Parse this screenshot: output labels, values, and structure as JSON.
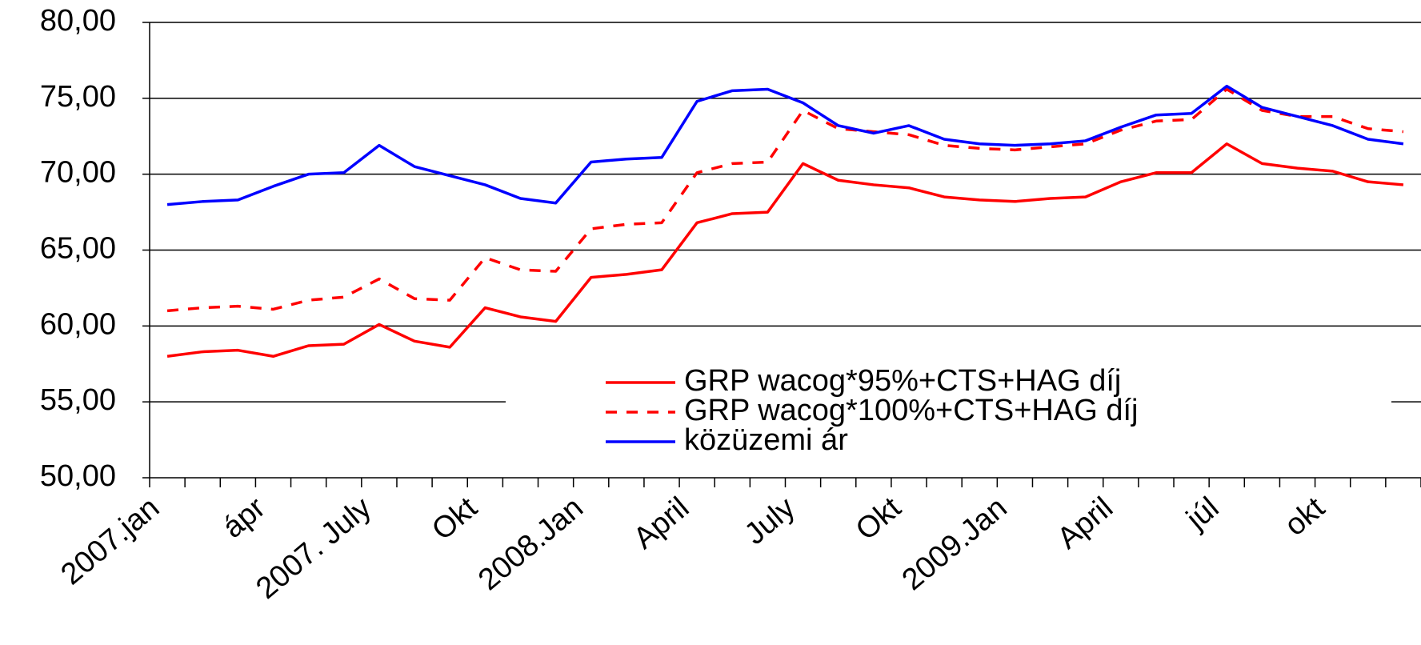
{
  "chart_data": {
    "type": "line",
    "categories": [
      "2007.jan",
      null,
      null,
      "ápr",
      null,
      null,
      "2007. July",
      null,
      null,
      "Okt",
      null,
      null,
      "2008.Jan",
      null,
      null,
      "April",
      null,
      null,
      "July",
      null,
      null,
      "Okt",
      null,
      null,
      "2009.Jan",
      null,
      null,
      "April",
      null,
      null,
      "júl",
      null,
      null,
      "okt",
      null,
      null
    ],
    "series": [
      {
        "name": "GRP wacog*95%+CTS+HAG díj",
        "color": "#ff0000",
        "style": "solid",
        "values": [
          58.0,
          58.3,
          58.4,
          58.0,
          58.7,
          58.8,
          60.1,
          59.0,
          58.6,
          61.2,
          60.6,
          60.3,
          63.2,
          63.4,
          63.7,
          66.8,
          67.4,
          67.5,
          70.7,
          69.6,
          69.3,
          69.1,
          68.5,
          68.3,
          68.2,
          68.4,
          68.5,
          69.5,
          70.1,
          70.1,
          72.0,
          70.7,
          70.4,
          70.2,
          69.5,
          69.3
        ]
      },
      {
        "name": "GRP wacog*100%+CTS+HAG díj",
        "color": "#ff0000",
        "style": "dashed",
        "values": [
          61.0,
          61.2,
          61.3,
          61.1,
          61.7,
          61.9,
          63.1,
          61.8,
          61.7,
          64.5,
          63.7,
          63.6,
          66.4,
          66.7,
          66.8,
          70.1,
          70.7,
          70.8,
          74.2,
          73.0,
          72.8,
          72.6,
          71.9,
          71.7,
          71.6,
          71.8,
          72.0,
          72.9,
          73.5,
          73.6,
          75.6,
          74.2,
          73.8,
          73.8,
          73.0,
          72.8
        ]
      },
      {
        "name": "közüzemi ár",
        "color": "#0000ff",
        "style": "solid",
        "values": [
          68.0,
          68.2,
          68.3,
          69.2,
          70.0,
          70.1,
          71.9,
          70.5,
          69.9,
          69.3,
          68.4,
          68.1,
          70.8,
          71.0,
          71.1,
          74.8,
          75.5,
          75.6,
          74.7,
          73.2,
          72.7,
          73.2,
          72.3,
          72.0,
          71.9,
          72.0,
          72.2,
          73.1,
          73.9,
          74.0,
          75.8,
          74.4,
          73.8,
          73.2,
          72.3,
          72.0
        ]
      }
    ],
    "ylim": [
      50,
      80
    ],
    "yticks": [
      {
        "value": 50,
        "label": "50,00"
      },
      {
        "value": 55,
        "label": "55,00"
      },
      {
        "value": 60,
        "label": "60,00"
      },
      {
        "value": 65,
        "label": "65,00"
      },
      {
        "value": 70,
        "label": "70,00"
      },
      {
        "value": 75,
        "label": "75,00"
      },
      {
        "value": 80,
        "label": "80,00"
      }
    ],
    "grid": true,
    "legend": "bottom-center"
  }
}
